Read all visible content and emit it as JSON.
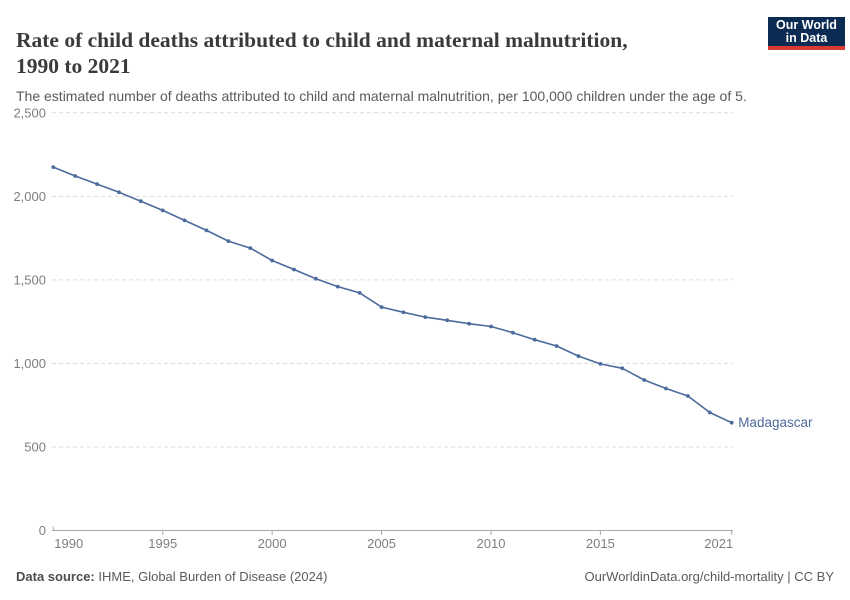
{
  "logo": {
    "line1": "Our World",
    "line2": "in Data",
    "bg": "#0b2b52",
    "red": "#d93a34"
  },
  "header": {
    "title": "Rate of child deaths attributed to child and maternal malnutrition, 1990 to 2021",
    "title_lines": [
      "Rate of child deaths attributed to child and maternal malnutrition,",
      "1990 to 2021"
    ],
    "subtitle": "The estimated number of deaths attributed to child and maternal malnutrition, per 100,000 children under the age of 5."
  },
  "chart_data": {
    "type": "line",
    "title": "Rate of child deaths attributed to child and maternal malnutrition, 1990 to 2021",
    "subtitle": "The estimated number of deaths attributed to child and maternal malnutrition, per 100,000 children under the age of 5.",
    "x": [
      1990,
      1991,
      1992,
      1993,
      1994,
      1995,
      1996,
      1997,
      1998,
      1999,
      2000,
      2001,
      2002,
      2003,
      2004,
      2005,
      2006,
      2007,
      2008,
      2009,
      2010,
      2011,
      2012,
      2013,
      2014,
      2015,
      2016,
      2017,
      2018,
      2019,
      2020,
      2021
    ],
    "series": [
      {
        "name": "Madagascar",
        "color": "#4c6a9c",
        "values": [
          2175,
          2122,
          2073,
          2024,
          1971,
          1916,
          1856,
          1796,
          1732,
          1690,
          1616,
          1562,
          1507,
          1460,
          1422,
          1337,
          1306,
          1277,
          1258,
          1238,
          1221,
          1184,
          1142,
          1104,
          1044,
          997,
          971,
          901,
          850,
          805,
          706,
          645
        ]
      }
    ],
    "xlim": [
      1990,
      2021
    ],
    "ylim": [
      0,
      2500
    ],
    "yticks": [
      0,
      500,
      1000,
      1500,
      2000,
      2500
    ],
    "xticks": [
      1990,
      1995,
      2000,
      2005,
      2010,
      2015,
      2021
    ],
    "grid": "horizontal-dashed",
    "legend": "end-of-line-label",
    "end_label": "Madagascar",
    "gridline_color": "#dcdcdc",
    "axis_color": "#a9a9a9",
    "tick_label_color": "#7f7f7f"
  },
  "footer": {
    "source_label": "Data source:",
    "source_text": " IHME, Global Burden of Disease (2024)",
    "credit": "OurWorldinData.org/child-mortality | CC BY"
  }
}
